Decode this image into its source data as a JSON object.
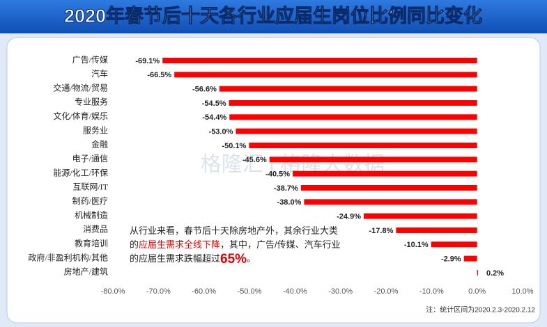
{
  "chart_data": {
    "type": "barh",
    "title": "2020年春节后十天各行业应届生岗位比例同比变化",
    "watermark": "格隆汇 | 格隆大数据",
    "categories": [
      "广告/传媒",
      "汽车",
      "交通/物流/贸易",
      "专业服务",
      "文化/体育/娱乐",
      "服务业",
      "金融",
      "电子/通信",
      "能源/化工/环保",
      "互联网/IT",
      "制药/医疗",
      "机械制造",
      "消费品",
      "教育培训",
      "政府/非盈利机构/其他",
      "房地产/建筑"
    ],
    "values": [
      -69.1,
      -66.5,
      -56.6,
      -54.5,
      -54.4,
      -53.0,
      -50.1,
      -45.6,
      -40.5,
      -38.7,
      -38.0,
      -24.9,
      -17.8,
      -10.1,
      -2.9,
      0.2
    ],
    "value_labels": [
      "-69.1%",
      "-66.5%",
      "-56.6%",
      "-54.5%",
      "-54.4%",
      "-53.0%",
      "-50.1%",
      "-45.6%",
      "-40.5%",
      "-38.7%",
      "-38.0%",
      "-24.9%",
      "-17.8%",
      "-10.1%",
      "-2.9%",
      "0.2%"
    ],
    "color": "#ff0000",
    "xlim": [
      -80,
      10
    ],
    "xticks": [
      {
        "value": -80,
        "label": "-80.0%"
      },
      {
        "value": -70,
        "label": "-70.0%"
      },
      {
        "value": -60,
        "label": "-60.0%"
      },
      {
        "value": -50,
        "label": "-50.0%"
      },
      {
        "value": -40,
        "label": "-40.0%"
      },
      {
        "value": -30,
        "label": "-30.0%"
      },
      {
        "value": -20,
        "label": "-20.0%"
      },
      {
        "value": -10,
        "label": "-10.0%"
      },
      {
        "value": 0,
        "label": "0.0%"
      },
      {
        "value": 10,
        "label": "10.0%"
      }
    ],
    "annotation": {
      "lines": [
        [
          {
            "text": "从行业来看，春节后十天除房地产外，其余行业大类"
          }
        ],
        [
          {
            "text": "的"
          },
          {
            "text": "应届生需求全线下降",
            "color": "#e00000"
          },
          {
            "text": "，其中，广告/传媒、汽车行业"
          }
        ],
        [
          {
            "text": "的应届生需求跌幅超过"
          },
          {
            "text": "65%",
            "color": "#e00000",
            "style": "large"
          },
          {
            "text": "。"
          }
        ]
      ]
    },
    "note": "注：统计区间为2020.2.3-2020.2.12"
  }
}
